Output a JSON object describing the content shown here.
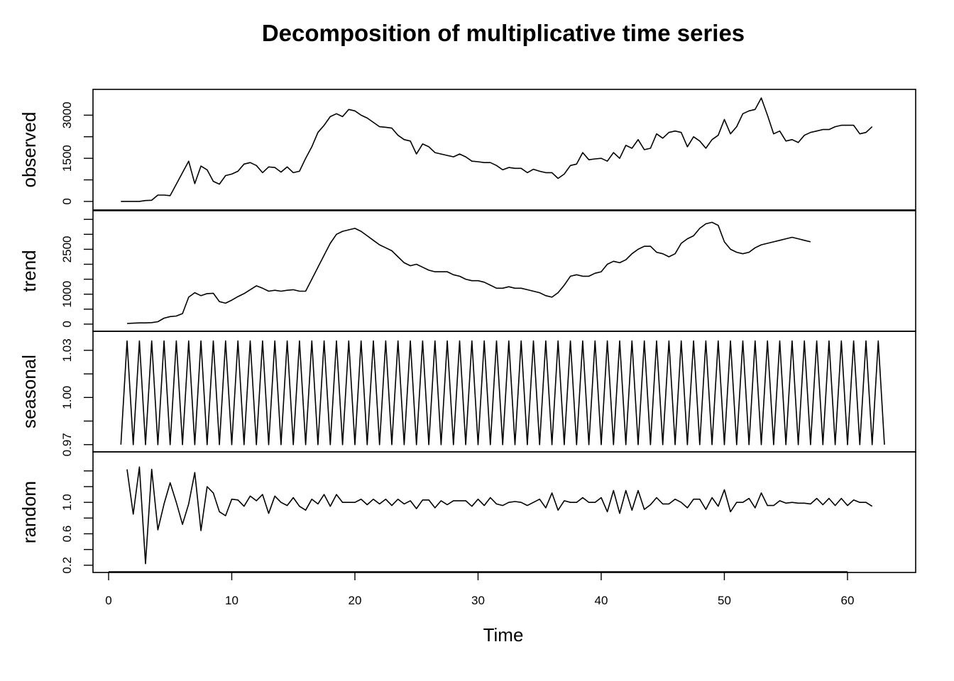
{
  "chart_data": {
    "type": "line",
    "title": "Decomposition of multiplicative time series",
    "xlabel": "Time",
    "xlim": [
      0,
      63
    ],
    "x_ticks": [
      "0",
      "10",
      "20",
      "30",
      "40",
      "50",
      "60"
    ],
    "x_start": 1,
    "x_step": 0.5,
    "panels": [
      {
        "name": "observed",
        "ylabel": "observed",
        "ylim": [
          -100,
          3700
        ],
        "y_ticks": [
          "0",
          "1500",
          "3000"
        ],
        "x_start": 1,
        "values": [
          0,
          0,
          0,
          0,
          30,
          40,
          220,
          220,
          200,
          600,
          1000,
          1400,
          620,
          1230,
          1100,
          700,
          600,
          900,
          950,
          1050,
          1300,
          1350,
          1250,
          1000,
          1200,
          1180,
          1020,
          1200,
          1000,
          1050,
          1500,
          1900,
          2400,
          2650,
          2950,
          3050,
          2950,
          3200,
          3150,
          3000,
          2900,
          2750,
          2600,
          2580,
          2550,
          2300,
          2150,
          2100,
          1650,
          2000,
          1900,
          1700,
          1650,
          1600,
          1550,
          1650,
          1550,
          1400,
          1380,
          1350,
          1350,
          1250,
          1100,
          1180,
          1150,
          1150,
          1000,
          1120,
          1050,
          1000,
          1000,
          800,
          950,
          1250,
          1300,
          1700,
          1450,
          1480,
          1500,
          1400,
          1700,
          1500,
          1950,
          1850,
          2150,
          1800,
          1850,
          2350,
          2200,
          2400,
          2450,
          2400,
          1900,
          2250,
          2100,
          1850,
          2150,
          2300,
          2850,
          2350,
          2600,
          3050,
          3150,
          3200,
          3600,
          3000,
          2350,
          2450,
          2100,
          2150,
          2050,
          2300,
          2400,
          2450,
          2500,
          2500,
          2600,
          2650,
          2650,
          2650,
          2350,
          2400,
          2600
        ]
      },
      {
        "name": "trend",
        "ylabel": "trend",
        "ylim": [
          -50,
          3600
        ],
        "y_ticks": [
          "0",
          "1000",
          "2500"
        ],
        "x_start": 1.5,
        "values": [
          20,
          30,
          40,
          40,
          50,
          80,
          200,
          250,
          270,
          350,
          900,
          1050,
          950,
          1020,
          1030,
          750,
          700,
          800,
          920,
          1020,
          1150,
          1280,
          1200,
          1100,
          1130,
          1100,
          1130,
          1150,
          1100,
          1100,
          1500,
          1900,
          2300,
          2700,
          3000,
          3100,
          3150,
          3200,
          3100,
          2950,
          2800,
          2650,
          2550,
          2450,
          2250,
          2050,
          1950,
          2000,
          1900,
          1800,
          1750,
          1750,
          1750,
          1650,
          1600,
          1500,
          1450,
          1450,
          1400,
          1300,
          1200,
          1200,
          1250,
          1200,
          1200,
          1150,
          1100,
          1050,
          950,
          900,
          1050,
          1300,
          1600,
          1650,
          1600,
          1600,
          1700,
          1750,
          2000,
          2100,
          2050,
          2150,
          2350,
          2500,
          2600,
          2600,
          2400,
          2350,
          2250,
          2350,
          2700,
          2850,
          2950,
          3200,
          3350,
          3400,
          3300,
          2750,
          2500,
          2400,
          2350,
          2400,
          2550,
          2650,
          2700,
          2750,
          2800,
          2850,
          2900,
          2850,
          2800,
          2750
        ]
      },
      {
        "name": "seasonal",
        "ylabel": "seasonal",
        "ylim": [
          0.969,
          1.0385
        ],
        "y_ticks": [
          "0.97",
          "1.00",
          "1.03"
        ],
        "x_start": 1,
        "pattern": [
          0.97,
          1.036
        ],
        "values": []
      },
      {
        "name": "random",
        "ylabel": "random",
        "ylim": [
          0.18,
          1.57
        ],
        "y_ticks": [
          "0.2",
          "0.6",
          "1.0"
        ],
        "x_start": 1.5,
        "values": [
          1.42,
          0.85,
          1.45,
          0.22,
          1.42,
          0.65,
          0.98,
          1.25,
          1.0,
          0.72,
          0.98,
          1.38,
          0.64,
          1.2,
          1.12,
          0.88,
          0.83,
          1.04,
          1.03,
          0.95,
          1.08,
          1.02,
          1.1,
          0.86,
          1.08,
          1.0,
          0.96,
          1.06,
          0.95,
          0.9,
          1.04,
          0.98,
          1.1,
          0.95,
          1.1,
          1.0,
          1.0,
          1.0,
          1.04,
          0.97,
          1.04,
          0.98,
          1.04,
          0.96,
          1.04,
          0.98,
          1.02,
          0.92,
          1.03,
          1.03,
          0.93,
          1.02,
          0.97,
          1.02,
          1.02,
          1.02,
          0.95,
          1.04,
          0.96,
          1.06,
          0.98,
          0.96,
          1.0,
          1.01,
          1.0,
          0.96,
          1.0,
          1.04,
          0.93,
          1.12,
          0.9,
          1.02,
          1.0,
          1.0,
          1.06,
          1.0,
          1.0,
          1.06,
          0.88,
          1.15,
          0.86,
          1.15,
          0.9,
          1.15,
          0.91,
          0.97,
          1.06,
          0.98,
          0.98,
          1.04,
          1.0,
          0.93,
          1.04,
          1.04,
          0.91,
          1.06,
          0.95,
          1.16,
          0.88,
          1.0,
          1.0,
          1.05,
          0.93,
          1.12,
          0.96,
          0.96,
          1.02,
          0.99,
          1.0,
          0.99,
          0.99,
          0.98,
          1.05,
          0.97,
          1.05,
          0.96,
          1.05,
          0.96,
          1.03,
          1.0,
          1.0,
          0.95
        ]
      }
    ]
  }
}
